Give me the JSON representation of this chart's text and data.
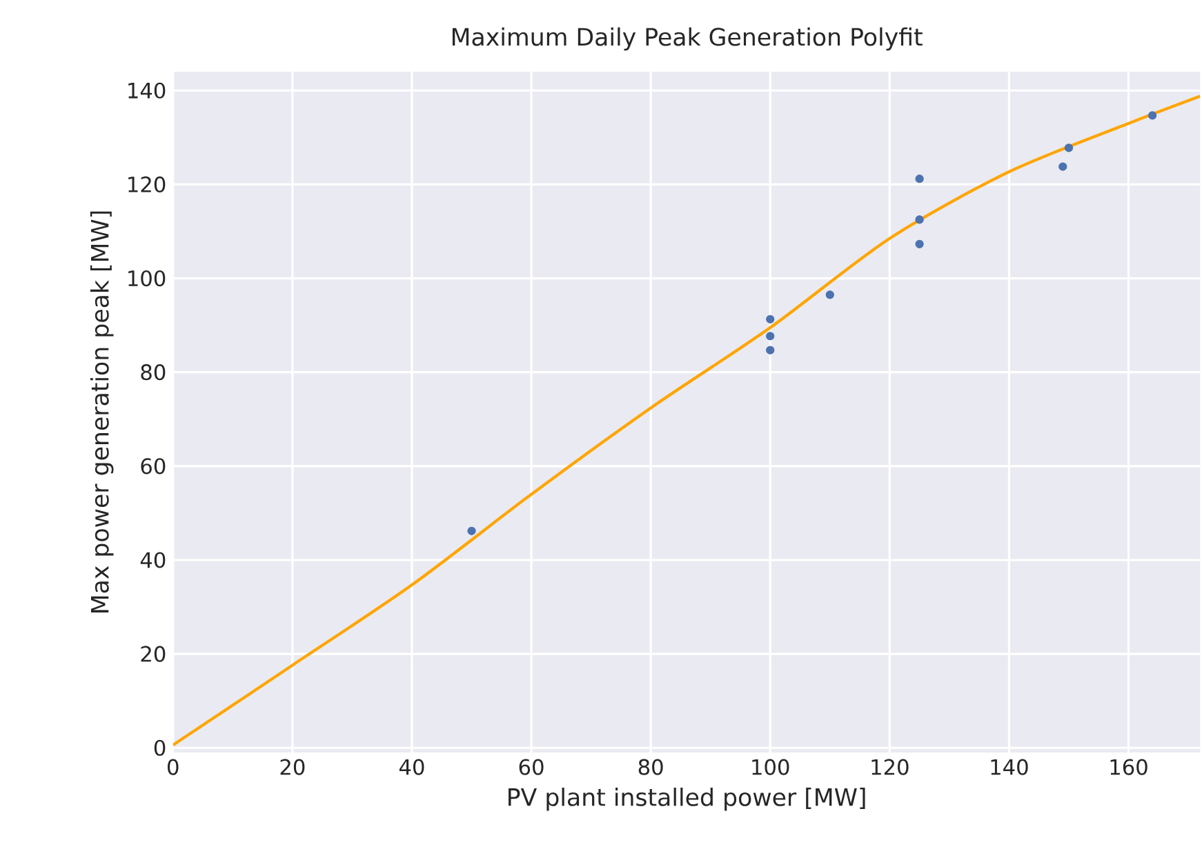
{
  "chart_data": {
    "type": "scatter",
    "title": "Maximum Daily Peak Generation Polyfit",
    "xlabel": "PV plant installed power [MW]",
    "ylabel": "Max power generation peak [MW]",
    "xlim": [
      0,
      172
    ],
    "ylim": [
      -1,
      144
    ],
    "xticks": [
      0,
      20,
      40,
      60,
      80,
      100,
      120,
      140,
      160
    ],
    "yticks": [
      0,
      20,
      40,
      60,
      80,
      100,
      120,
      140
    ],
    "grid": true,
    "series": [
      {
        "color": "#4c72b0",
        "marker": "circle",
        "x": [
          50,
          100,
          100,
          100,
          110,
          125,
          125,
          125,
          149,
          150,
          164
        ],
        "values": [
          46.2,
          91.3,
          87.7,
          84.7,
          96.5,
          121.2,
          112.5,
          107.3,
          123.8,
          127.8,
          134.7
        ]
      },
      {
        "type": "line",
        "color": "#ffa500",
        "marker": "none",
        "line_style": "solid",
        "x": [
          0,
          20,
          40,
          60,
          80,
          100,
          120,
          140,
          160,
          172
        ],
        "values": [
          0.6,
          17.6,
          34.7,
          54.0,
          72.4,
          89.5,
          108.5,
          122.7,
          133.0,
          138.8
        ]
      }
    ]
  }
}
